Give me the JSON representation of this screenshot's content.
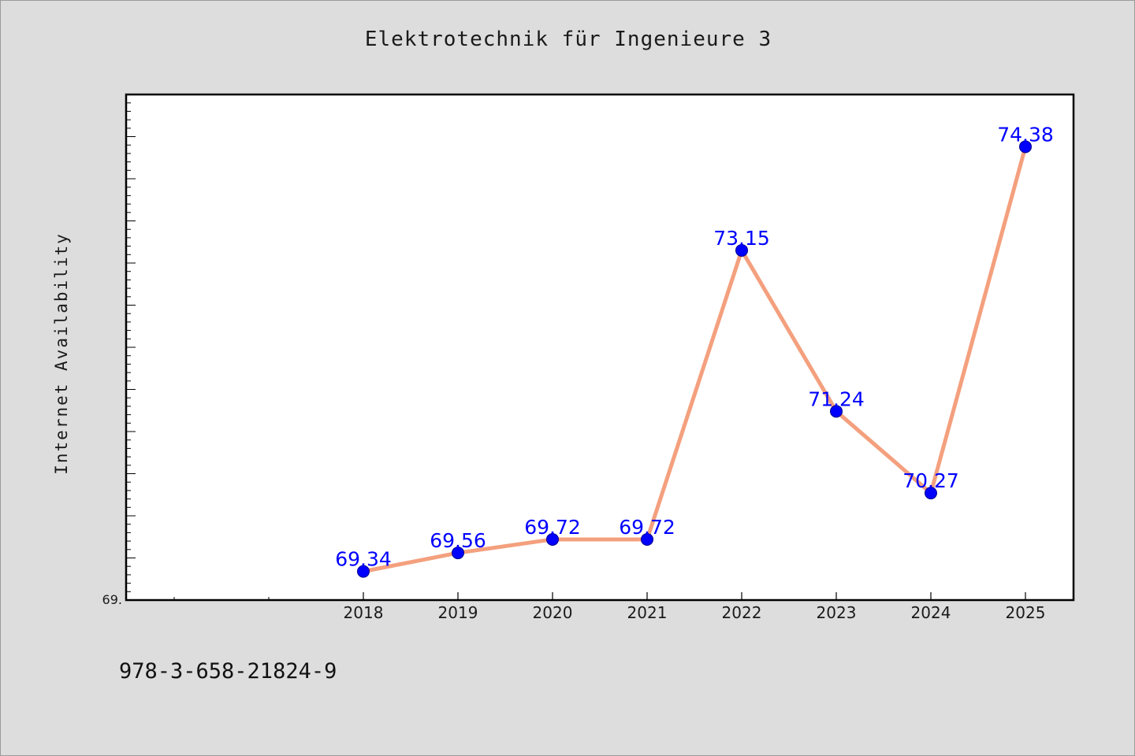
{
  "chart_data": {
    "type": "line",
    "title": "Elektrotechnik für Ingenieure 3",
    "xlabel": "",
    "ylabel": "Internet Availability",
    "categories": [
      "2018",
      "2019",
      "2020",
      "2021",
      "2022",
      "2023",
      "2024",
      "2025"
    ],
    "series": [
      {
        "values": [
          69.34,
          69.56,
          69.72,
          69.72,
          73.15,
          71.24,
          70.27,
          74.38
        ],
        "data_labels": [
          "69.34",
          "69.56",
          "69.72",
          "69.72",
          "73.15",
          "71.24",
          "70.27",
          "74.38"
        ]
      }
    ],
    "y_min_label": "69.",
    "ylim": [
      69.0,
      75.0
    ],
    "grid": false,
    "line_color": "#f4a07e",
    "marker_color": "#0000ff",
    "label_color": "#0000ff"
  },
  "footer_text": "978-3-658-21824-9"
}
